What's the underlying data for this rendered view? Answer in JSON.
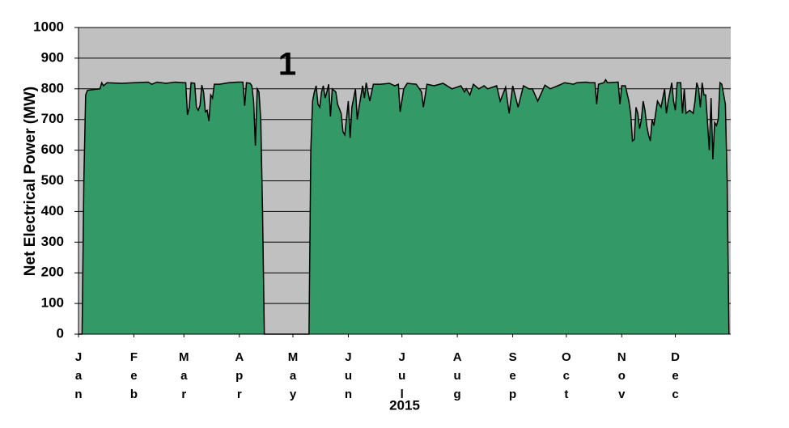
{
  "chart_data": {
    "type": "area",
    "title": "1",
    "x_label": "2015",
    "y_label": "Net Electrical Power (MW)",
    "x": [
      1,
      3,
      4,
      5,
      6,
      10,
      13,
      14,
      15,
      17,
      25,
      32,
      40,
      42,
      45,
      50,
      55,
      60,
      61,
      62,
      63,
      64,
      66,
      67,
      68,
      69,
      70,
      71,
      72,
      73,
      74,
      75,
      76,
      77,
      80,
      85,
      90,
      93,
      94,
      95,
      97,
      98,
      99,
      100,
      101,
      102,
      103,
      104,
      105,
      130,
      131,
      132,
      133,
      134,
      135,
      136,
      137,
      138,
      139,
      140,
      141,
      142,
      143,
      145,
      146,
      148,
      149,
      150,
      152,
      153,
      154,
      155,
      156,
      157,
      158,
      160,
      161,
      162,
      164,
      166,
      170,
      175,
      178,
      180,
      181,
      183,
      185,
      190,
      193,
      194,
      196,
      200,
      205,
      210,
      215,
      217,
      218,
      220,
      222,
      225,
      228,
      230,
      235,
      237,
      240,
      242,
      244,
      247,
      250,
      253,
      255,
      258,
      262,
      265,
      270,
      273,
      278,
      280,
      285,
      287,
      290,
      291,
      292,
      295,
      296,
      297,
      303,
      304,
      305,
      307,
      309,
      310,
      311,
      312,
      313,
      314,
      315,
      316,
      317,
      318,
      319,
      320,
      321,
      322,
      323,
      325,
      326,
      327,
      329,
      330,
      331,
      333,
      334,
      335,
      336,
      338,
      339,
      340,
      341,
      343,
      345,
      346,
      347,
      348,
      349,
      350,
      351,
      352,
      354,
      355,
      356,
      357,
      358,
      359,
      360,
      361,
      363,
      364,
      365
    ],
    "series": [
      {
        "name": null,
        "color": "#339966",
        "values": [
          0,
          0,
          500,
          780,
          795,
          798,
          800,
          820,
          810,
          820,
          818,
          820,
          822,
          815,
          822,
          818,
          822,
          820,
          820,
          715,
          740,
          820,
          818,
          740,
          730,
          745,
          812,
          790,
          725,
          730,
          695,
          780,
          770,
          815,
          815,
          820,
          822,
          822,
          745,
          820,
          818,
          810,
          760,
          615,
          800,
          790,
          700,
          400,
          0,
          0,
          600,
          760,
          790,
          810,
          750,
          740,
          790,
          810,
          770,
          790,
          815,
          710,
          800,
          790,
          750,
          720,
          660,
          650,
          760,
          640,
          740,
          770,
          800,
          700,
          740,
          810,
          770,
          820,
          760,
          815,
          815,
          818,
          810,
          815,
          725,
          800,
          818,
          815,
          790,
          740,
          815,
          810,
          818,
          800,
          810,
          790,
          800,
          780,
          815,
          800,
          810,
          800,
          810,
          760,
          805,
          720,
          810,
          740,
          810,
          800,
          800,
          760,
          812,
          800,
          812,
          820,
          815,
          820,
          822,
          820,
          820,
          750,
          815,
          820,
          830,
          820,
          822,
          750,
          810,
          810,
          760,
          720,
          630,
          635,
          740,
          720,
          670,
          700,
          760,
          730,
          680,
          650,
          630,
          700,
          680,
          760,
          750,
          740,
          800,
          720,
          760,
          820,
          760,
          730,
          820,
          820,
          720,
          800,
          720,
          730,
          720,
          760,
          820,
          800,
          740,
          820,
          780,
          780,
          600,
          770,
          570,
          690,
          680,
          700,
          820,
          815,
          750,
          500,
          0
        ]
      }
    ],
    "xlim": [
      1,
      366
    ],
    "xticks": [
      {
        "value": 1,
        "label": "Jan"
      },
      {
        "value": 32,
        "label": "Feb"
      },
      {
        "value": 60,
        "label": "Mar"
      },
      {
        "value": 91,
        "label": "Apr"
      },
      {
        "value": 121,
        "label": "May"
      },
      {
        "value": 152,
        "label": "Jun"
      },
      {
        "value": 182,
        "label": "Jul"
      },
      {
        "value": 213,
        "label": "Aug"
      },
      {
        "value": 244,
        "label": "Sep"
      },
      {
        "value": 274,
        "label": "Oct"
      },
      {
        "value": 305,
        "label": "Nov"
      },
      {
        "value": 335,
        "label": "Dec"
      }
    ],
    "ylim": [
      0,
      1000
    ],
    "yticks": [
      0,
      100,
      200,
      300,
      400,
      500,
      600,
      700,
      800,
      900,
      1000
    ],
    "grid": true,
    "background": "#c0c0c0"
  }
}
